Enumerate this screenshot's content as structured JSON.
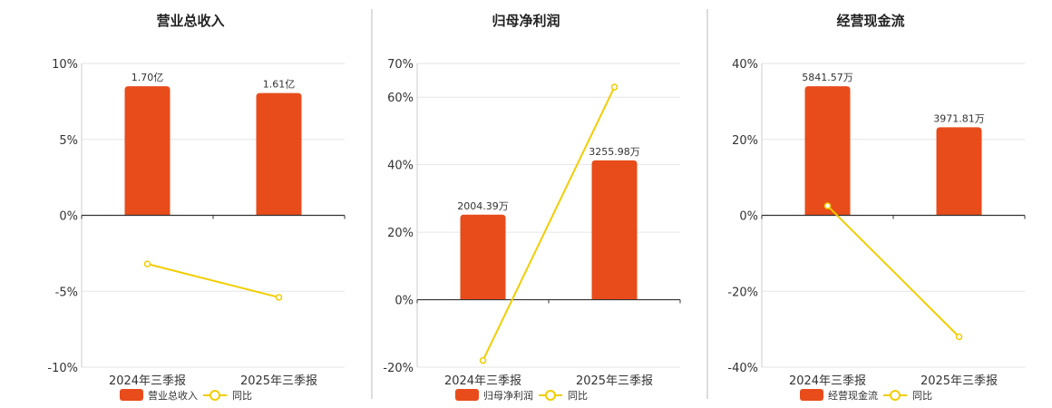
{
  "colors": {
    "bar": "#E84C1B",
    "line": "#F2CD00",
    "axis": "#333333",
    "grid": "#e6e6e6",
    "divider": "#bbbbbb"
  },
  "chart_data": [
    {
      "type": "bar",
      "title": "营业总收入",
      "categories": [
        "2024年三季报",
        "2025年三季报"
      ],
      "y_ticks": [
        "10%",
        "5%",
        "0%",
        "-5%",
        "-10%"
      ],
      "ylim": [
        -10,
        10
      ],
      "tick_values": [
        10,
        5,
        0,
        -5,
        -10
      ],
      "bar_norm": [
        0.85,
        0.805
      ],
      "bar_labels": [
        "1.70亿",
        "1.61亿"
      ],
      "line_values": [
        -3.2,
        -5.4
      ],
      "legend": {
        "bar": "营业总收入",
        "line": "同比"
      }
    },
    {
      "type": "bar",
      "title": "归母净利润",
      "categories": [
        "2024年三季报",
        "2025年三季报"
      ],
      "y_ticks": [
        "70%",
        "60%",
        "40%",
        "20%",
        "0%",
        "-20%"
      ],
      "ylim": [
        -20,
        70
      ],
      "tick_values": [
        70,
        60,
        40,
        20,
        0,
        -20
      ],
      "bar_norm": [
        0.36,
        0.59
      ],
      "bar_labels": [
        "2004.39万",
        "3255.98万"
      ],
      "line_values": [
        -18,
        63
      ],
      "legend": {
        "bar": "归母净利润",
        "line": "同比"
      }
    },
    {
      "type": "bar",
      "title": "经营现金流",
      "categories": [
        "2024年三季报",
        "2025年三季报"
      ],
      "y_ticks": [
        "40%",
        "20%",
        "0%",
        "-20%",
        "-40%"
      ],
      "ylim": [
        -40,
        40
      ],
      "tick_values": [
        40,
        20,
        0,
        -20,
        -40
      ],
      "bar_norm": [
        0.85,
        0.58
      ],
      "bar_labels": [
        "5841.57万",
        "3971.81万"
      ],
      "line_values": [
        2.5,
        -32
      ],
      "legend": {
        "bar": "经营现金流",
        "line": "同比"
      }
    }
  ]
}
